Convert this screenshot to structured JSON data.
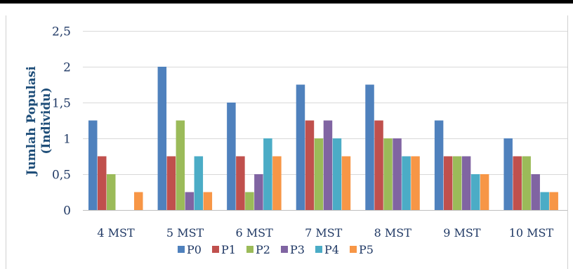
{
  "chart_data": {
    "type": "bar",
    "title": "",
    "xlabel": "",
    "ylabel": "Jumlah Populasi (Individu)",
    "ylim": [
      0,
      2.5
    ],
    "yticks": [
      "0",
      "0,5",
      "1",
      "1,5",
      "2",
      "2,5"
    ],
    "grid": true,
    "legend_position": "bottom",
    "categories": [
      "4 MST",
      "5 MST",
      "6 MST",
      "7 MST",
      "8 MST",
      "9 MST",
      "10 MST"
    ],
    "series": [
      {
        "name": "P0",
        "color": "#4f81bd",
        "values": [
          1.25,
          2.0,
          1.5,
          1.75,
          1.75,
          1.25,
          1.0
        ]
      },
      {
        "name": "P1",
        "color": "#c0504d",
        "values": [
          0.75,
          0.75,
          0.75,
          1.25,
          1.25,
          0.75,
          0.75
        ]
      },
      {
        "name": "P2",
        "color": "#9bbb59",
        "values": [
          0.5,
          1.25,
          0.25,
          1.0,
          1.0,
          0.75,
          0.75
        ]
      },
      {
        "name": "P3",
        "color": "#8064a2",
        "values": [
          0,
          0.25,
          0.5,
          1.25,
          1.0,
          0.75,
          0.5
        ]
      },
      {
        "name": "P4",
        "color": "#4bacc6",
        "values": [
          0,
          0.75,
          1.0,
          1.0,
          0.75,
          0.5,
          0.25
        ]
      },
      {
        "name": "P5",
        "color": "#f79646",
        "values": [
          0.25,
          0.25,
          0.75,
          0.75,
          0.75,
          0.5,
          0.25
        ]
      }
    ]
  }
}
